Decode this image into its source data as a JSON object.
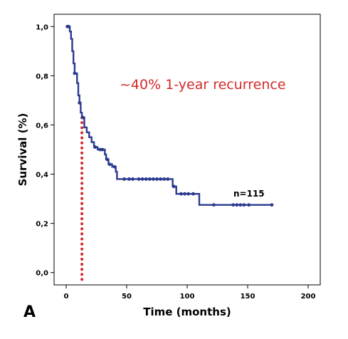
{
  "chart_data": {
    "type": "line",
    "subtype": "kaplan-meier",
    "panel_label": "A",
    "xlabel": "Time (months)",
    "ylabel": "Survival (%)",
    "xlim": [
      -10,
      210
    ],
    "ylim": [
      -0.05,
      1.05
    ],
    "x_ticks": [
      0,
      50,
      100,
      150,
      200
    ],
    "x_tick_labels": [
      "0",
      "50",
      "100",
      "150",
      "200"
    ],
    "y_ticks": [
      0,
      0.2,
      0.4,
      0.6,
      0.8,
      1.0
    ],
    "y_tick_labels": [
      "0,0",
      "0,2",
      "0,4",
      "0,6",
      "0,8",
      "1,0"
    ],
    "grid": false,
    "legend": "none",
    "series": [
      {
        "color": "#2b3a8f",
        "step_points": [
          [
            0,
            1.0
          ],
          [
            3,
            0.98
          ],
          [
            4,
            0.95
          ],
          [
            5,
            0.9
          ],
          [
            6,
            0.85
          ],
          [
            7,
            0.81
          ],
          [
            9,
            0.77
          ],
          [
            10,
            0.72
          ],
          [
            11,
            0.69
          ],
          [
            12,
            0.65
          ],
          [
            13,
            0.63
          ],
          [
            15,
            0.59
          ],
          [
            17,
            0.57
          ],
          [
            19,
            0.55
          ],
          [
            21,
            0.53
          ],
          [
            23,
            0.51
          ],
          [
            26,
            0.5
          ],
          [
            32,
            0.48
          ],
          [
            33,
            0.46
          ],
          [
            35,
            0.44
          ],
          [
            38,
            0.43
          ],
          [
            41,
            0.41
          ],
          [
            42,
            0.38
          ],
          [
            88,
            0.35
          ],
          [
            91,
            0.32
          ],
          [
            110,
            0.275
          ],
          [
            170,
            0.275
          ]
        ],
        "censor_x": [
          1,
          2,
          7,
          11,
          14,
          24,
          28,
          30,
          34,
          36,
          40,
          48,
          52,
          55,
          60,
          63,
          66,
          69,
          72,
          75,
          78,
          81,
          84,
          89,
          95,
          98,
          101,
          105,
          122,
          138,
          141,
          144,
          147,
          151,
          170
        ]
      }
    ],
    "reference_line": {
      "x": 13,
      "y": 0.63,
      "color": "#d42a2a",
      "style": "dotted"
    },
    "annotations": [
      {
        "text": "~40% 1-year recurrence",
        "color": "#d42a2a"
      },
      {
        "text": "n=115",
        "color": "#000000"
      }
    ]
  }
}
